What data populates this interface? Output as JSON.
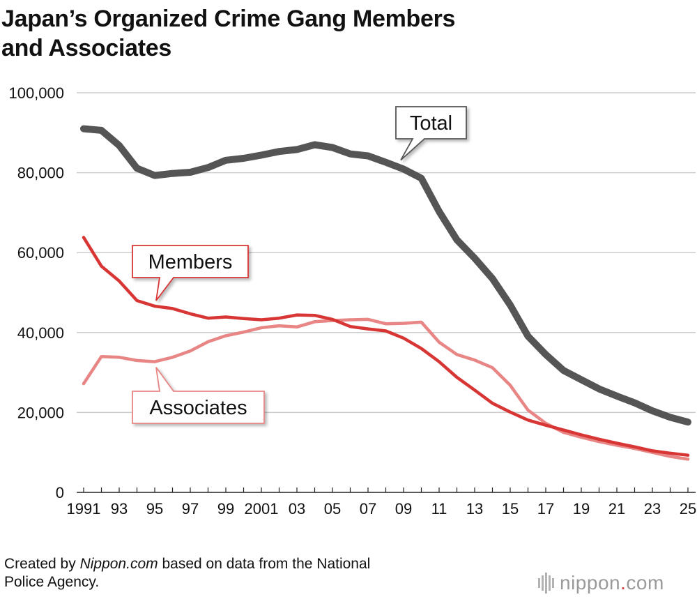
{
  "title_line1": "Japan’s Organized Crime Gang Members",
  "title_line2": "and Associates",
  "footer": {
    "line1_prefix": "Created by ",
    "line1_source": "Nippon.com",
    "line1_suffix": " based on data from the National",
    "line2": "Police Agency."
  },
  "brand": {
    "name": "nippon",
    "dot": ".",
    "suffix": "com"
  },
  "colors": {
    "total": "#555555",
    "members": "#d83535",
    "associates": "#e88585",
    "grid": "#cccccc"
  },
  "chart_data": {
    "type": "line",
    "title": "Japan’s Organized Crime Gang Members and Associates",
    "xlabel": "",
    "ylabel": "",
    "x": [
      1991,
      1992,
      1993,
      1994,
      1995,
      1996,
      1997,
      1998,
      1999,
      2000,
      2001,
      2002,
      2003,
      2004,
      2005,
      2006,
      2007,
      2008,
      2009,
      2010,
      2011,
      2012,
      2013,
      2014,
      2015,
      2016,
      2017,
      2018,
      2019,
      2020,
      2021,
      2022,
      2023,
      2024,
      2025
    ],
    "xlim": [
      1991,
      2025
    ],
    "ylim": [
      0,
      100000
    ],
    "y_ticks": [
      {
        "value": 0,
        "label": "0"
      },
      {
        "value": 20000,
        "label": "20,000"
      },
      {
        "value": 40000,
        "label": "40,000"
      },
      {
        "value": 60000,
        "label": "60,000"
      },
      {
        "value": 80000,
        "label": "80,000"
      },
      {
        "value": 100000,
        "label": "100,000"
      }
    ],
    "x_tick_labels": [
      {
        "year": 1991,
        "label": "1991"
      },
      {
        "year": 1993,
        "label": "93"
      },
      {
        "year": 1995,
        "label": "95"
      },
      {
        "year": 1997,
        "label": "97"
      },
      {
        "year": 1999,
        "label": "99"
      },
      {
        "year": 2001,
        "label": "2001"
      },
      {
        "year": 2003,
        "label": "03"
      },
      {
        "year": 2005,
        "label": "05"
      },
      {
        "year": 2007,
        "label": "07"
      },
      {
        "year": 2009,
        "label": "09"
      },
      {
        "year": 2011,
        "label": "11"
      },
      {
        "year": 2013,
        "label": "13"
      },
      {
        "year": 2015,
        "label": "15"
      },
      {
        "year": 2017,
        "label": "17"
      },
      {
        "year": 2019,
        "label": "19"
      },
      {
        "year": 2021,
        "label": "21"
      },
      {
        "year": 2023,
        "label": "23"
      },
      {
        "year": 2025,
        "label": "25"
      }
    ],
    "grid": true,
    "series": [
      {
        "name": "Total",
        "color": "#555555",
        "values": [
          91000,
          90600,
          86800,
          81100,
          79300,
          79800,
          80100,
          81300,
          83100,
          83600,
          84400,
          85300,
          85800,
          87000,
          86300,
          84700,
          84200,
          82600,
          80900,
          78600,
          70300,
          63200,
          58600,
          53500,
          46900,
          39100,
          34500,
          30500,
          28200,
          25900,
          24100,
          22400,
          20400,
          18800,
          17600
        ]
      },
      {
        "name": "Members",
        "color": "#d83535",
        "values": [
          63800,
          56600,
          52900,
          48000,
          46600,
          46000,
          44700,
          43600,
          43900,
          43500,
          43200,
          43600,
          44400,
          44300,
          43300,
          41500,
          40900,
          40400,
          38600,
          36000,
          32700,
          28800,
          25600,
          22300,
          20100,
          18100,
          16800,
          15600,
          14400,
          13300,
          12300,
          11400,
          10400,
          9800,
          9300
        ]
      },
      {
        "name": "Associates",
        "color": "#e88585",
        "values": [
          27200,
          34000,
          33800,
          33000,
          32700,
          33800,
          35400,
          37700,
          39200,
          40100,
          41200,
          41700,
          41400,
          42700,
          43000,
          43200,
          43300,
          42200,
          42300,
          42600,
          37600,
          34500,
          33100,
          31200,
          26800,
          20600,
          17300,
          15000,
          13800,
          12700,
          11800,
          11000,
          10000,
          9000,
          8300
        ]
      }
    ],
    "annotations": [
      {
        "series": "Total",
        "text": "Total",
        "pointer_year": 2009
      },
      {
        "series": "Members",
        "text": "Members",
        "pointer_year": 1995
      },
      {
        "series": "Associates",
        "text": "Associates",
        "pointer_year": 1995
      }
    ]
  }
}
